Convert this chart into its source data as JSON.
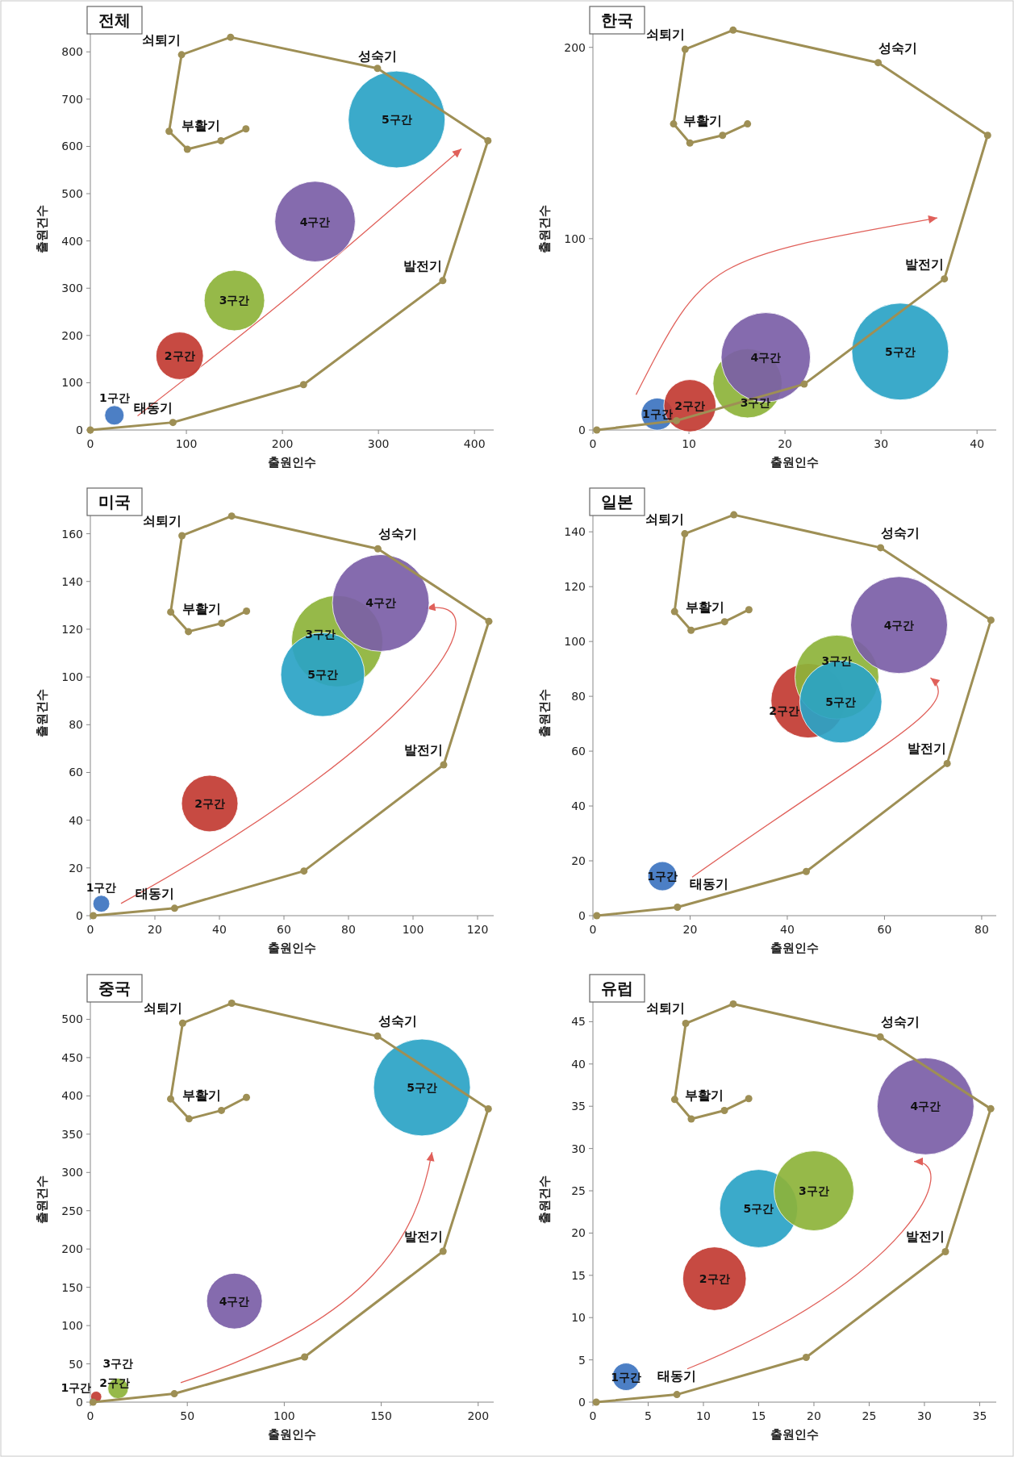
{
  "chart_data": [
    {
      "type": "bubble",
      "title": "전체",
      "xlabel": "출원인수",
      "ylabel": "출원건수",
      "xlim": [
        0,
        420
      ],
      "xticks": [
        0,
        100,
        200,
        300,
        400
      ],
      "ylim": [
        0,
        850
      ],
      "yticks": [
        0,
        100,
        200,
        300,
        400,
        500,
        600,
        700,
        800
      ],
      "series": [
        {
          "name": "1구간",
          "color": "#3d74c0",
          "x": [
            25
          ],
          "values": [
            31
          ],
          "sizes": [
            0.04
          ]
        },
        {
          "name": "2구간",
          "color": "#c23b32",
          "x": [
            93
          ],
          "values": [
            157
          ],
          "sizes": [
            0.24
          ]
        },
        {
          "name": "3구간",
          "color": "#8db33a",
          "x": [
            150
          ],
          "values": [
            274
          ],
          "sizes": [
            0.39
          ]
        },
        {
          "name": "4구간",
          "color": "#7b5ea7",
          "x": [
            234
          ],
          "values": [
            441
          ],
          "sizes": [
            0.69
          ]
        },
        {
          "name": "5구간",
          "color": "#2aa3c6",
          "x": [
            319
          ],
          "values": [
            657
          ],
          "sizes": [
            1
          ]
        },
        {
          "type": "line",
          "color": "#9e8f55",
          "marker": "circle",
          "x": [
            0,
            86,
            222,
            367,
            414,
            299,
            146,
            95,
            82,
            101,
            136,
            162
          ],
          "values": [
            0,
            16,
            96,
            316,
            612,
            765,
            831,
            794,
            632,
            594,
            612,
            637
          ]
        }
      ],
      "annotations": [
        {
          "text": "태동기",
          "x": 86,
          "y": 16
        },
        {
          "text": "발전기",
          "x": 367,
          "y": 316
        },
        {
          "text": "성숙기",
          "x": 299,
          "y": 765
        },
        {
          "text": "쇠퇴기",
          "x": 95,
          "y": 794
        },
        {
          "text": "부활기",
          "x": 136,
          "y": 612
        }
      ]
    },
    {
      "type": "bubble",
      "title": "한국",
      "xlabel": "출원인수",
      "ylabel": "출원건수",
      "xlim": [
        0,
        42
      ],
      "xticks": [
        0,
        10,
        20,
        30,
        40
      ],
      "ylim": [
        0,
        210
      ],
      "yticks": [
        0,
        100,
        200
      ],
      "series": [
        {
          "name": "1구간",
          "color": "#3d74c0",
          "x": [
            6.7
          ],
          "values": [
            8.3
          ],
          "sizes": [
            0.11
          ]
        },
        {
          "name": "2구간",
          "color": "#c23b32",
          "x": [
            10.1
          ],
          "values": [
            12.7
          ],
          "sizes": [
            0.29
          ]
        },
        {
          "name": "3구간",
          "color": "#8db33a",
          "x": [
            16.1
          ],
          "values": [
            24.4
          ],
          "sizes": [
            0.51
          ]
        },
        {
          "name": "4구간",
          "color": "#7b5ea7",
          "x": [
            18.0
          ],
          "values": [
            38
          ],
          "sizes": [
            0.85
          ]
        },
        {
          "name": "5구간",
          "color": "#2aa3c6",
          "x": [
            32.0
          ],
          "values": [
            41
          ],
          "sizes": [
            1
          ]
        },
        {
          "type": "line",
          "color": "#9e8f55",
          "marker": "circle",
          "x": [
            0.4,
            8.7,
            22.0,
            36.6,
            41.1,
            29.7,
            14.6,
            9.6,
            8.4,
            10.1,
            13.5,
            16.1
          ],
          "values": [
            0,
            4.9,
            24,
            79,
            154,
            192,
            209,
            199,
            160,
            150,
            154,
            160
          ]
        }
      ],
      "annotations": [
        {
          "text": "발전기",
          "x": 36.6,
          "y": 79
        },
        {
          "text": "성숙기",
          "x": 29.7,
          "y": 192
        },
        {
          "text": "쇠퇴기",
          "x": 9.6,
          "y": 199
        },
        {
          "text": "부활기",
          "x": 13.5,
          "y": 154
        }
      ]
    },
    {
      "type": "bubble",
      "title": "미국",
      "xlabel": "출원인수",
      "ylabel": "출원건수",
      "xlim": [
        0,
        125
      ],
      "xticks": [
        0,
        20,
        40,
        60,
        80,
        100,
        120
      ],
      "ylim": [
        0,
        170
      ],
      "yticks": [
        0,
        20,
        40,
        60,
        80,
        100,
        120,
        140,
        160
      ],
      "series": [
        {
          "name": "1구간",
          "color": "#3d74c0",
          "x": [
            3.4
          ],
          "values": [
            5
          ],
          "sizes": [
            0.03
          ]
        },
        {
          "name": "2구간",
          "color": "#c23b32",
          "x": [
            37
          ],
          "values": [
            47
          ],
          "sizes": [
            0.34
          ]
        },
        {
          "name": "3구간",
          "color": "#8db33a",
          "x": [
            76.5
          ],
          "values": [
            115
          ],
          "sizes": [
            0.89
          ]
        },
        {
          "name": "5구간",
          "color": "#2aa3c6",
          "x": [
            72
          ],
          "values": [
            101
          ],
          "sizes": [
            0.75
          ]
        },
        {
          "name": "4구간",
          "color": "#7b5ea7",
          "x": [
            90
          ],
          "values": [
            131
          ],
          "sizes": [
            1
          ]
        },
        {
          "type": "line",
          "color": "#9e8f55",
          "marker": "circle",
          "x": [
            0.9,
            26.1,
            66.2,
            109.5,
            123.5,
            89.1,
            43.8,
            28.4,
            24.9,
            30.4,
            40.7,
            48.4
          ],
          "values": [
            0,
            3.1,
            18.7,
            63.2,
            123.3,
            153.7,
            167.4,
            159.2,
            127.2,
            119.0,
            122.5,
            127.6
          ]
        }
      ],
      "annotations": [
        {
          "text": "태동기",
          "x": 26.1,
          "y": 3.1
        },
        {
          "text": "발전기",
          "x": 109.5,
          "y": 63.2
        },
        {
          "text": "성숙기",
          "x": 89.1,
          "y": 153.7
        },
        {
          "text": "쇠퇴기",
          "x": 28.4,
          "y": 159.2
        },
        {
          "text": "부활기",
          "x": 40.7,
          "y": 122.5
        }
      ]
    },
    {
      "type": "bubble",
      "title": "일본",
      "xlabel": "출원인수",
      "ylabel": "출원건수",
      "xlim": [
        0,
        83
      ],
      "xticks": [
        0,
        20,
        40,
        60,
        80
      ],
      "ylim": [
        0,
        148
      ],
      "yticks": [
        0,
        20,
        40,
        60,
        80,
        100,
        120,
        140
      ],
      "series": [
        {
          "name": "1구간",
          "color": "#3d74c0",
          "x": [
            14.3
          ],
          "values": [
            14.4
          ],
          "sizes": [
            0.09
          ]
        },
        {
          "name": "2구간",
          "color": "#c23b32",
          "x": [
            44.3
          ],
          "values": [
            78.4
          ],
          "sizes": [
            0.59
          ]
        },
        {
          "name": "3구간",
          "color": "#8db33a",
          "x": [
            50.2
          ],
          "values": [
            87
          ],
          "sizes": [
            0.75
          ]
        },
        {
          "name": "5구간",
          "color": "#2aa3c6",
          "x": [
            51
          ],
          "values": [
            78
          ],
          "sizes": [
            0.72
          ]
        },
        {
          "name": "4구간",
          "color": "#7b5ea7",
          "x": [
            63
          ],
          "values": [
            106
          ],
          "sizes": [
            1
          ]
        },
        {
          "type": "line",
          "color": "#9e8f55",
          "marker": "circle",
          "x": [
            0.8,
            17.4,
            43.9,
            72.9,
            81.9,
            59.2,
            29.0,
            18.9,
            16.8,
            20.2,
            27.1,
            32.1
          ],
          "values": [
            0,
            3.1,
            16.1,
            55.5,
            107.8,
            134.2,
            146.2,
            139.3,
            110.9,
            104.1,
            107.2,
            111.6
          ]
        }
      ],
      "annotations": [
        {
          "text": "태동기",
          "x": 17.4,
          "y": 3.1
        },
        {
          "text": "발전기",
          "x": 72.9,
          "y": 55.5
        },
        {
          "text": "성숙기",
          "x": 59.2,
          "y": 134.2
        },
        {
          "text": "쇠퇴기",
          "x": 18.9,
          "y": 139.3
        },
        {
          "text": "부활기",
          "x": 27.1,
          "y": 107.2
        }
      ]
    },
    {
      "type": "bubble",
      "title": "중국",
      "xlabel": "출원인수",
      "ylabel": "출원건수",
      "xlim": [
        0,
        208
      ],
      "xticks": [
        0,
        50,
        100,
        150,
        200
      ],
      "ylim": [
        0,
        530
      ],
      "yticks": [
        0,
        50,
        100,
        150,
        200,
        250,
        300,
        350,
        400,
        450,
        500
      ],
      "series": [
        {
          "name": "1구간",
          "color": "#3d74c0",
          "x": [
            1
          ],
          "values": [
            3
          ],
          "sizes": [
            0.003
          ]
        },
        {
          "name": "2구간",
          "color": "#c23b32",
          "x": [
            3
          ],
          "values": [
            7
          ],
          "sizes": [
            0.013
          ]
        },
        {
          "name": "3구간",
          "color": "#8db33a",
          "x": [
            14.3
          ],
          "values": [
            18
          ],
          "sizes": [
            0.045
          ]
        },
        {
          "name": "4구간",
          "color": "#7b5ea7",
          "x": [
            74.3
          ],
          "values": [
            132
          ],
          "sizes": [
            0.33
          ]
        },
        {
          "name": "5구간",
          "color": "#2aa3c6",
          "x": [
            171
          ],
          "values": [
            411
          ],
          "sizes": [
            1
          ]
        },
        {
          "type": "line",
          "color": "#9e8f55",
          "marker": "circle",
          "x": [
            1.4,
            43.3,
            110.5,
            181.9,
            205.2,
            148.1,
            72.9,
            47.6,
            41.4,
            50.9,
            67.6,
            80.5
          ],
          "values": [
            0,
            11,
            59,
            197,
            383,
            478,
            521,
            495,
            396,
            370,
            381,
            398
          ]
        }
      ],
      "annotations": [
        {
          "text": "발전기",
          "x": 181.9,
          "y": 197
        },
        {
          "text": "성숙기",
          "x": 148.1,
          "y": 478
        },
        {
          "text": "쇠퇴기",
          "x": 47.6,
          "y": 495
        },
        {
          "text": "부활기",
          "x": 67.6,
          "y": 381
        }
      ]
    },
    {
      "type": "bubble",
      "title": "유럽",
      "xlabel": "출원인수",
      "ylabel": "출원건수",
      "xlim": [
        0,
        36.5
      ],
      "xticks": [
        0,
        5,
        10,
        15,
        20,
        25,
        30,
        35
      ],
      "ylim": [
        0,
        48
      ],
      "yticks": [
        0,
        5,
        10,
        15,
        20,
        25,
        30,
        35,
        40,
        45
      ],
      "series": [
        {
          "name": "1구간",
          "color": "#3d74c0",
          "x": [
            3.0
          ],
          "values": [
            3.0
          ],
          "sizes": [
            0.08
          ]
        },
        {
          "name": "2구간",
          "color": "#c23b32",
          "x": [
            11.0
          ],
          "values": [
            14.6
          ],
          "sizes": [
            0.43
          ]
        },
        {
          "name": "5구간",
          "color": "#2aa3c6",
          "x": [
            15.0
          ],
          "values": [
            22.9
          ],
          "sizes": [
            0.65
          ]
        },
        {
          "name": "3구간",
          "color": "#8db33a",
          "x": [
            20.0
          ],
          "values": [
            25.0
          ],
          "sizes": [
            0.68
          ]
        },
        {
          "name": "4구간",
          "color": "#7b5ea7",
          "x": [
            30.1
          ],
          "values": [
            35.0
          ],
          "sizes": [
            1
          ]
        },
        {
          "type": "line",
          "color": "#9e8f55",
          "marker": "circle",
          "x": [
            0.3,
            7.6,
            19.3,
            31.9,
            36.0,
            26.0,
            12.7,
            8.4,
            7.4,
            8.9,
            11.9,
            14.1
          ],
          "values": [
            0,
            0.9,
            5.3,
            17.8,
            34.7,
            43.2,
            47.1,
            44.8,
            35.8,
            33.5,
            34.5,
            35.9
          ]
        }
      ],
      "annotations": [
        {
          "text": "태동기",
          "x": 7.6,
          "y": 0.9
        },
        {
          "text": "발전기",
          "x": 31.9,
          "y": 17.8
        },
        {
          "text": "성숙기",
          "x": 26.0,
          "y": 43.2
        },
        {
          "text": "쇠퇴기",
          "x": 8.4,
          "y": 44.8
        },
        {
          "text": "부활기",
          "x": 11.9,
          "y": 34.5
        }
      ]
    }
  ]
}
